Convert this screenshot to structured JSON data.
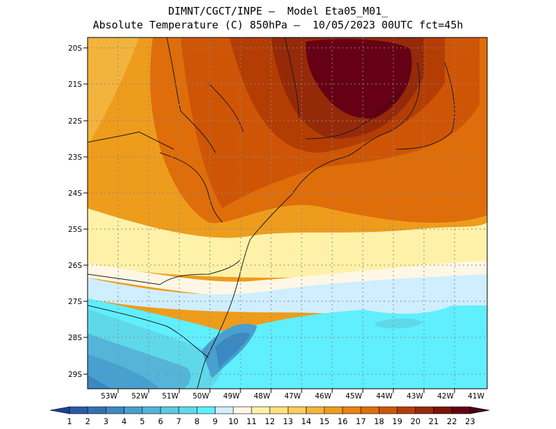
{
  "header": {
    "line1": "DIMNT/CGCT/INPE –  Model Eta05_M01_",
    "line2": "Absolute Temperature (C) 850hPa –  10/05/2023 00UTC fct=45h"
  },
  "map": {
    "lat_labels": [
      "20S",
      "21S",
      "22S",
      "23S",
      "24S",
      "25S",
      "26S",
      "27S",
      "28S",
      "29S"
    ],
    "lon_labels": [
      "53W",
      "52W",
      "51W",
      "50W",
      "49W",
      "48W",
      "47W",
      "46W",
      "45W",
      "44W",
      "43W",
      "42W",
      "41W"
    ]
  },
  "colorbar": {
    "labels": [
      "1",
      "2",
      "3",
      "4",
      "5",
      "6",
      "7",
      "8",
      "9",
      "10",
      "11",
      "12",
      "13",
      "14",
      "15",
      "16",
      "17",
      "18",
      "19",
      "20",
      "21",
      "22",
      "23"
    ],
    "colors": [
      "#1f3f93",
      "#2a5aa6",
      "#3471b5",
      "#3c88c2",
      "#47a0cf",
      "#54b5d9",
      "#5dc9e2",
      "#5fd9ea",
      "#5fefff",
      "#cfeeff",
      "#fff7e6",
      "#fff2a8",
      "#ffe278",
      "#ffcd5c",
      "#f2b43c",
      "#ee9c1c",
      "#e88410",
      "#df6d0a",
      "#cf5506",
      "#b43d04",
      "#952a09",
      "#7a1508",
      "#650015",
      "#4a0018"
    ]
  }
}
